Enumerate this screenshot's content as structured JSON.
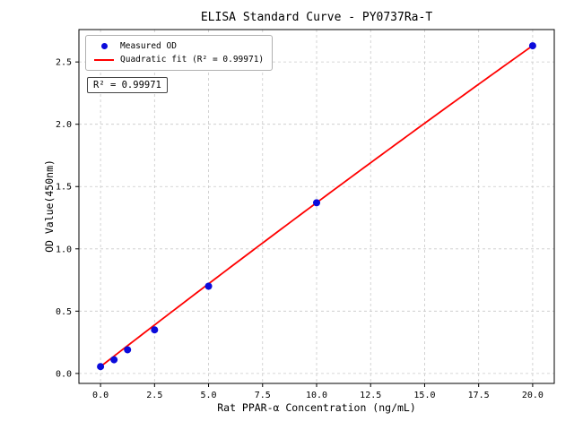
{
  "chart_data": {
    "type": "scatter",
    "title": "ELISA Standard Curve - PY0737Ra-T",
    "xlabel": "Rat PPAR-α Concentration (ng/mL)",
    "ylabel": "OD Value(450nm)",
    "xlim": [
      -1,
      21
    ],
    "ylim": [
      -0.08,
      2.76
    ],
    "xtick_values": [
      0,
      2.5,
      5,
      7.5,
      10,
      12.5,
      15,
      17.5,
      20
    ],
    "xtick_labels": [
      "0.0",
      "2.5",
      "5.0",
      "7.5",
      "10.0",
      "12.5",
      "15.0",
      "17.5",
      "20.0"
    ],
    "ytick_values": [
      0,
      0.5,
      1.0,
      1.5,
      2.0,
      2.5
    ],
    "ytick_labels": [
      "0.0",
      "0.5",
      "1.0",
      "1.5",
      "2.0",
      "2.5"
    ],
    "grid": true,
    "legend_position": "upper left",
    "colors": {
      "points": "#0b0bdb",
      "fit_line": "#ff0000",
      "grid": "#c9c9c9",
      "axes": "#000000"
    },
    "series": [
      {
        "name": "Measured OD",
        "type": "scatter",
        "x": [
          0,
          0.625,
          1.25,
          2.5,
          5,
          10,
          20
        ],
        "y": [
          0.055,
          0.11,
          0.19,
          0.35,
          0.7,
          1.37,
          2.63
        ]
      }
    ],
    "fit": {
      "name": "Quadratic fit (R² = 0.99971)",
      "type": "quadratic",
      "coefficients": [
        0.055,
        0.1343,
        -0.000275
      ],
      "x_range": [
        0,
        20
      ],
      "r_squared": 0.99971
    },
    "annotation": "R² = 0.99971"
  }
}
